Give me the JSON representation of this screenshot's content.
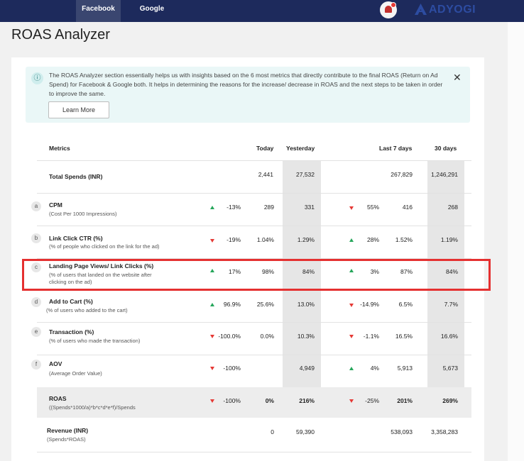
{
  "nav": {
    "tabs": [
      "Facebook",
      "Google"
    ]
  },
  "brand": {
    "logo_text": "ADYOGI",
    "logo_color": "#2d4ca1"
  },
  "page": {
    "title": "ROAS Analyzer"
  },
  "info": {
    "text": "The ROAS Analyzer section essentially helps us with insights based on the 6 most metrics that directly contribute to the final ROAS (Return on Ad Spend) for Facebook & Google both. It helps in determining the reasons for the increase/ decrease in ROAS and the next steps to be taken in order to improve the same.",
    "button": "Learn More",
    "icon": "info-icon",
    "close_icon": "close-icon"
  },
  "table": {
    "headers": {
      "metrics": "Metrics",
      "today": "Today",
      "yesterday": "Yesterday",
      "last7": "Last 7 days",
      "d30": "30 days"
    },
    "total_spends": {
      "name": "Total Spends (INR)",
      "today": "2,441",
      "yesterday": "27,532",
      "last7": "267,829",
      "d30": "1,246,291"
    },
    "rows": [
      {
        "badge": "a",
        "name": "CPM",
        "desc": "(Cost Per 1000 Impressions)",
        "chg1": "-13%",
        "dir1": "up",
        "today": "289",
        "yesterday": "331",
        "chg2": "55%",
        "dir2": "down",
        "last7": "416",
        "d30": "268"
      },
      {
        "badge": "b",
        "name": "Link Click CTR (%)",
        "desc": "(% of people who clicked on the link for the ad)",
        "chg1": "-19%",
        "dir1": "down",
        "today": "1.04%",
        "yesterday": "1.29%",
        "chg2": "28%",
        "dir2": "up",
        "last7": "1.52%",
        "d30": "1.19%"
      },
      {
        "badge": "c",
        "name": "Landing Page Views/ Link Clicks (%)",
        "desc": "(% of users  that landed on the website after",
        "desc2": "clicking on the ad)",
        "chg1": "17%",
        "dir1": "up",
        "today": "98%",
        "yesterday": "84%",
        "chg2": "3%",
        "dir2": "up",
        "last7": "87%",
        "d30": "84%"
      },
      {
        "badge": "d",
        "name": "Add to Cart (%)",
        "desc": "(%  of users who added to the cart)",
        "chg1": "96.9%",
        "dir1": "up",
        "today": "25.6%",
        "yesterday": "13.0%",
        "chg2": "-14.9%",
        "dir2": "down",
        "last7": "6.5%",
        "d30": "7.7%"
      },
      {
        "badge": "e",
        "name": "Transaction (%)",
        "desc": "(% of users who made the transaction)",
        "chg1": "-100.0%",
        "dir1": "down",
        "today": "0.0%",
        "yesterday": "10.3%",
        "chg2": "-1.1%",
        "dir2": "down",
        "last7": "16.5%",
        "d30": "16.6%"
      },
      {
        "badge": "f",
        "name": "AOV",
        "desc": "(Average Order Value)",
        "chg1": "-100%",
        "dir1": "down",
        "today": "",
        "yesterday": "4,949",
        "chg2": "4%",
        "dir2": "up",
        "last7": "5,913",
        "d30": "5,673"
      }
    ],
    "roas": {
      "name": "ROAS",
      "formula": "((Spends*1000/a)*b*c*d*e*f)/Spends",
      "chg1": "-100%",
      "dir1": "down",
      "today": "0%",
      "yesterday": "216%",
      "chg2": "-25%",
      "dir2": "down",
      "last7": "201%",
      "d30": "269%"
    },
    "revenue": {
      "name": "Revenue (INR)",
      "formula": "(Spends*ROAS)",
      "today": "0",
      "yesterday": "59,390",
      "last7": "538,093",
      "d30": "3,358,283"
    }
  }
}
